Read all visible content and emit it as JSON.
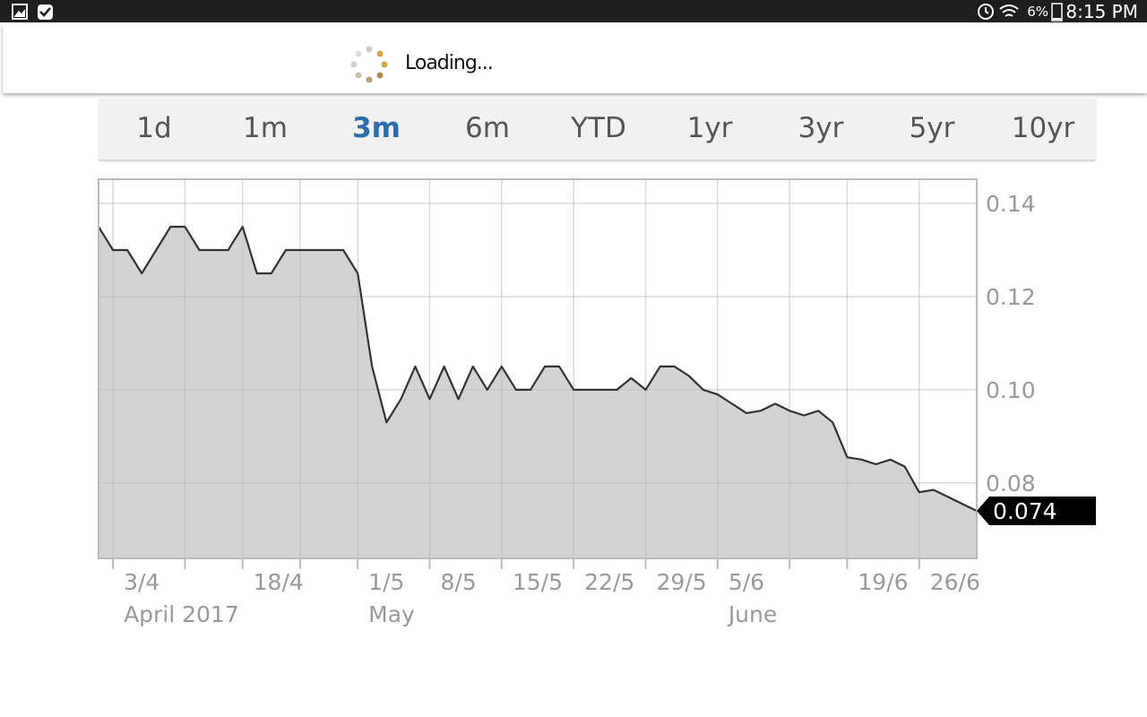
{
  "status_bar": {
    "battery": "6%",
    "time": "8:15 PM"
  },
  "loading": {
    "text": "Loading..."
  },
  "tabs": {
    "items": [
      "1d",
      "1m",
      "3m",
      "6m",
      "YTD",
      "1yr",
      "3yr",
      "5yr",
      "10yr"
    ],
    "selected": 2,
    "selected_color": "#2a6ead"
  },
  "chart_data": {
    "type": "area",
    "color": "#d3d3d3",
    "line_color": "#333333",
    "grid": true,
    "x": [
      "2017-03-31",
      "2017-04-03",
      "2017-04-04",
      "2017-04-05",
      "2017-04-06",
      "2017-04-07",
      "2017-04-10",
      "2017-04-11",
      "2017-04-12",
      "2017-04-13",
      "2017-04-18",
      "2017-04-19",
      "2017-04-20",
      "2017-04-21",
      "2017-04-24",
      "2017-04-26",
      "2017-04-27",
      "2017-04-28",
      "2017-05-01",
      "2017-05-02",
      "2017-05-03",
      "2017-05-04",
      "2017-05-05",
      "2017-05-08",
      "2017-05-09",
      "2017-05-10",
      "2017-05-11",
      "2017-05-12",
      "2017-05-15",
      "2017-05-16",
      "2017-05-17",
      "2017-05-18",
      "2017-05-19",
      "2017-05-22",
      "2017-05-23",
      "2017-05-24",
      "2017-05-25",
      "2017-05-26",
      "2017-05-29",
      "2017-05-30",
      "2017-05-31",
      "2017-06-01",
      "2017-06-02",
      "2017-06-05",
      "2017-06-06",
      "2017-06-07",
      "2017-06-08",
      "2017-06-09",
      "2017-06-13",
      "2017-06-14",
      "2017-06-15",
      "2017-06-16",
      "2017-06-19",
      "2017-06-20",
      "2017-06-21",
      "2017-06-22",
      "2017-06-23",
      "2017-06-26",
      "2017-06-27",
      "2017-06-28",
      "2017-06-29",
      "2017-06-30"
    ],
    "values": [
      0.135,
      0.13,
      0.13,
      0.125,
      0.13,
      0.135,
      0.135,
      0.13,
      0.13,
      0.13,
      0.135,
      0.125,
      0.125,
      0.13,
      0.13,
      0.13,
      0.13,
      0.13,
      0.125,
      0.105,
      0.093,
      0.098,
      0.105,
      0.098,
      0.105,
      0.098,
      0.105,
      0.1,
      0.105,
      0.1,
      0.1,
      0.105,
      0.105,
      0.1,
      0.1,
      0.1,
      0.1,
      0.1025,
      0.1,
      0.105,
      0.105,
      0.103,
      0.1,
      0.099,
      0.097,
      0.095,
      0.0955,
      0.097,
      0.0955,
      0.0945,
      0.0955,
      0.093,
      0.0855,
      0.085,
      0.084,
      0.085,
      0.0835,
      0.078,
      0.0785,
      0.077,
      0.0755,
      0.074
    ],
    "ylim": [
      0.0638,
      0.1452
    ],
    "yticks": [
      {
        "value": 0.08,
        "label": "0.08"
      },
      {
        "value": 0.1,
        "label": "0.10"
      },
      {
        "value": 0.12,
        "label": "0.12"
      },
      {
        "value": 0.14,
        "label": "0.14"
      }
    ],
    "xticks": [
      {
        "value": "2017-04-03",
        "label": "3/4"
      },
      {
        "value": "2017-04-10",
        "label": null
      },
      {
        "value": "2017-04-18",
        "label": "18/4"
      },
      {
        "value": "2017-04-24",
        "label": null
      },
      {
        "value": "2017-05-01",
        "label": "1/5"
      },
      {
        "value": "2017-05-08",
        "label": "8/5"
      },
      {
        "value": "2017-05-15",
        "label": "15/5"
      },
      {
        "value": "2017-05-22",
        "label": "22/5"
      },
      {
        "value": "2017-05-29",
        "label": "29/5"
      },
      {
        "value": "2017-06-05",
        "label": "5/6"
      },
      {
        "value": "2017-06-13",
        "label": null
      },
      {
        "value": "2017-06-19",
        "label": "19/6"
      },
      {
        "value": "2017-06-26",
        "label": "26/6"
      }
    ],
    "month_labels": [
      {
        "value": "2017-04-03",
        "label": "April 2017"
      },
      {
        "value": "2017-05-01",
        "label": "May"
      },
      {
        "value": "2017-06-05",
        "label": "June"
      }
    ]
  }
}
